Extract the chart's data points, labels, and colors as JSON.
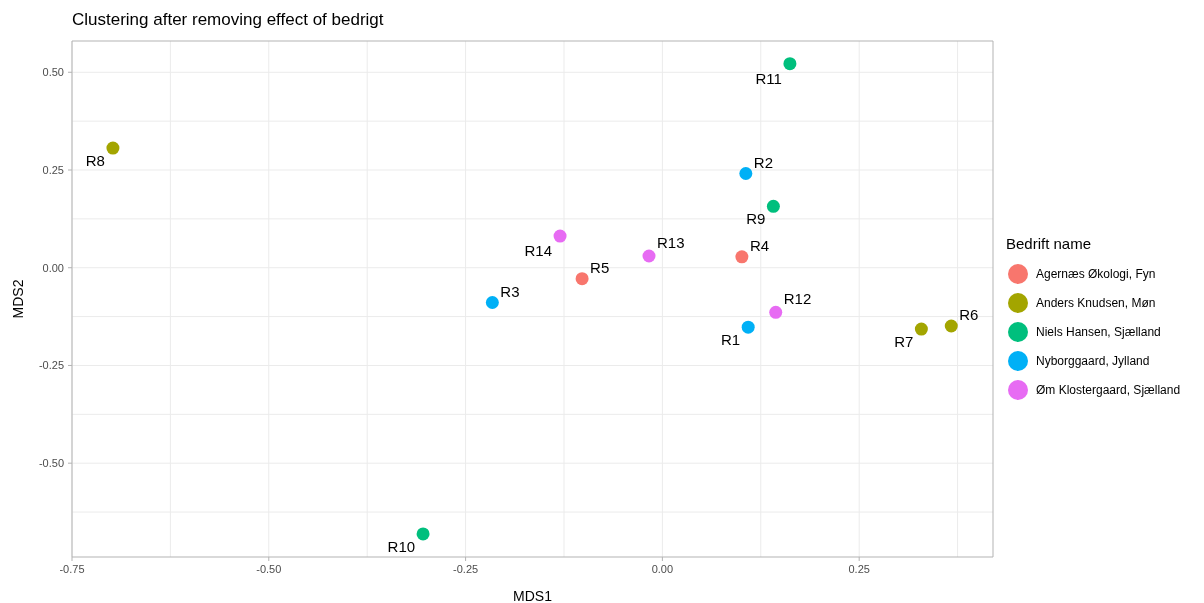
{
  "chart_data": {
    "type": "scatter",
    "title": "Clustering after removing effect of bedrigt",
    "xlabel": "MDS1",
    "ylabel": "MDS2",
    "legend_title": "Bedrift name",
    "series": [
      {
        "name": "Agernæs Økologi, Fyn",
        "color": "#f8766d",
        "x": [
          0.101,
          -0.102
        ],
        "values": [
          0.028,
          -0.028
        ]
      },
      {
        "name": "Anders Knudsen, Møn",
        "color": "#a3a500",
        "x": [
          0.367,
          0.329,
          -0.698
        ],
        "values": [
          -0.149,
          -0.157,
          0.306
        ]
      },
      {
        "name": "Niels Hansen, Sjælland",
        "color": "#00bf7d",
        "x": [
          0.141,
          -0.304,
          0.162
        ],
        "values": [
          0.157,
          -0.681,
          0.522
        ]
      },
      {
        "name": "Nyborggaard, Jylland",
        "color": "#00b0f6",
        "x": [
          0.109,
          0.106,
          -0.216
        ],
        "values": [
          -0.152,
          0.241,
          -0.089
        ]
      },
      {
        "name": "Øm Klostergaard, Sjælland",
        "color": "#e76bf3",
        "x": [
          0.144,
          -0.017,
          -0.13
        ],
        "values": [
          -0.114,
          0.03,
          0.081
        ]
      }
    ],
    "annotations": [
      {
        "text": "R1",
        "x": 0.109,
        "y": -0.152
      },
      {
        "text": "R2",
        "x": 0.106,
        "y": 0.241
      },
      {
        "text": "R3",
        "x": -0.216,
        "y": -0.089
      },
      {
        "text": "R4",
        "x": 0.101,
        "y": 0.028
      },
      {
        "text": "R5",
        "x": -0.102,
        "y": -0.028
      },
      {
        "text": "R6",
        "x": 0.367,
        "y": -0.149
      },
      {
        "text": "R7",
        "x": 0.329,
        "y": -0.157
      },
      {
        "text": "R8",
        "x": -0.698,
        "y": 0.306
      },
      {
        "text": "R9",
        "x": 0.141,
        "y": 0.157
      },
      {
        "text": "R10",
        "x": -0.304,
        "y": -0.681
      },
      {
        "text": "R11",
        "x": 0.162,
        "y": 0.522
      },
      {
        "text": "R12",
        "x": 0.144,
        "y": -0.114
      },
      {
        "text": "R13",
        "x": -0.017,
        "y": 0.03
      },
      {
        "text": "R14",
        "x": -0.13,
        "y": 0.081
      }
    ],
    "xlim": [
      -0.75,
      0.42
    ],
    "ylim": [
      -0.74,
      0.58
    ],
    "xticks": [
      {
        "value": -0.75,
        "label": "-0.75"
      },
      {
        "value": -0.625,
        "label": null
      },
      {
        "value": -0.5,
        "label": "-0.50"
      },
      {
        "value": -0.375,
        "label": null
      },
      {
        "value": -0.25,
        "label": "-0.25"
      },
      {
        "value": -0.125,
        "label": null
      },
      {
        "value": 0,
        "label": "0.00"
      },
      {
        "value": 0.125,
        "label": null
      },
      {
        "value": 0.25,
        "label": "0.25"
      },
      {
        "value": 0.375,
        "label": null
      }
    ],
    "yticks": [
      {
        "value": -0.625,
        "label": null
      },
      {
        "value": -0.5,
        "label": "-0.50"
      },
      {
        "value": -0.375,
        "label": null
      },
      {
        "value": -0.25,
        "label": "-0.25"
      },
      {
        "value": -0.125,
        "label": null
      },
      {
        "value": 0,
        "label": "0.00"
      },
      {
        "value": 0.125,
        "label": null
      },
      {
        "value": 0.25,
        "label": "0.25"
      },
      {
        "value": 0.375,
        "label": null
      },
      {
        "value": 0.5,
        "label": "0.50"
      }
    ],
    "grid": true,
    "legend": "right",
    "marker": "circle"
  }
}
